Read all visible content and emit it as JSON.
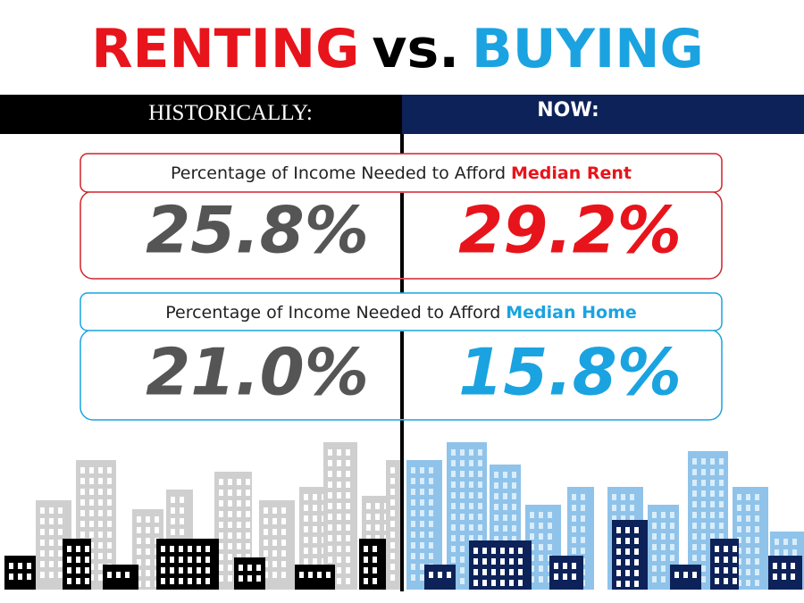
{
  "title": {
    "renting": "RENTING",
    "vs": "vs.",
    "buying": "BUYING"
  },
  "columns": {
    "left": "HISTORICALLY:",
    "right": "NOW:"
  },
  "panels": [
    {
      "label": "Percentage of Income Needed to Afford",
      "highlight": "Median Rent",
      "historically": "25.8%",
      "now": "29.2%"
    },
    {
      "label": "Percentage of Income Needed to Afford",
      "highlight": "Median Home",
      "historically": "21.0%",
      "now": "15.8%"
    }
  ]
}
